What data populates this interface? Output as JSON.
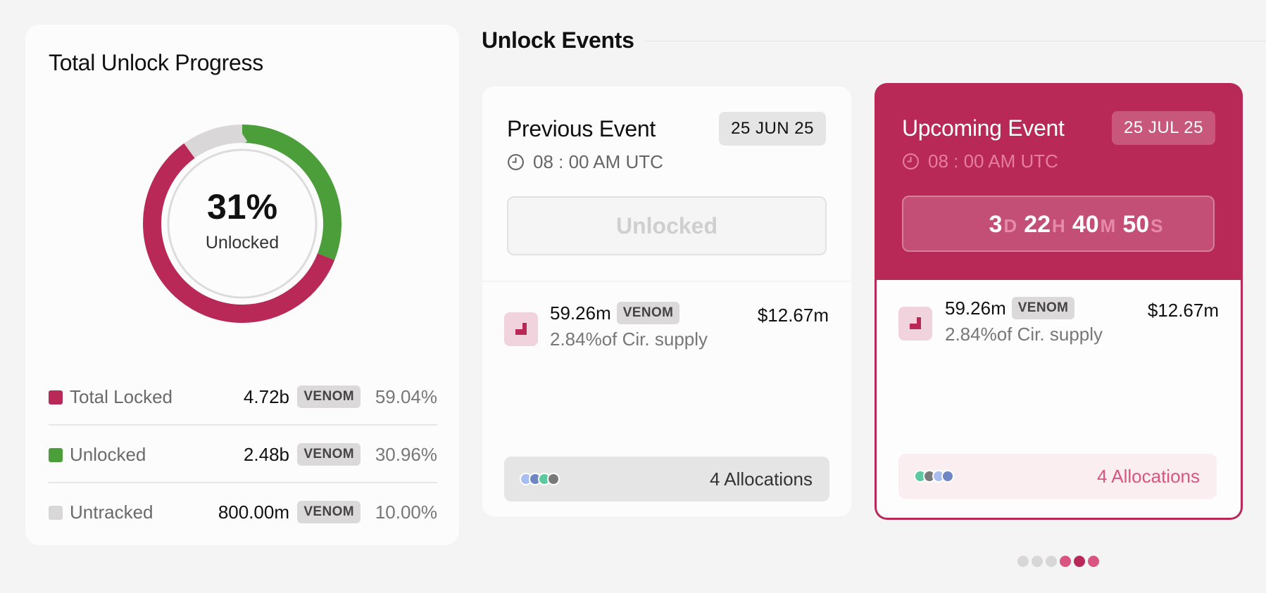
{
  "progress": {
    "title": "Total Unlock Progress",
    "percent": "31%",
    "percent_label": "Unlocked",
    "legend": [
      {
        "name": "Total Locked",
        "amount": "4.72b",
        "token": "VENOM",
        "pct": "59.04%",
        "color": "#b82958",
        "share": 59.04
      },
      {
        "name": "Unlocked",
        "amount": "2.48b",
        "token": "VENOM",
        "pct": "30.96%",
        "color": "#4b9e3a",
        "share": 30.96
      },
      {
        "name": "Untracked",
        "amount": "800.00m",
        "token": "VENOM",
        "pct": "10.00%",
        "color": "#dad7d8",
        "share": 10.0
      }
    ]
  },
  "events": {
    "section_title": "Unlock Events",
    "previous": {
      "title": "Previous Event",
      "date": "25 JUN 25",
      "time": "08 : 00 AM UTC",
      "status": "Unlocked",
      "amount": "59.26m",
      "token": "VENOM",
      "supply": "2.84%of Cir. supply",
      "usd": "$12.67m",
      "allocations": "4 Allocations",
      "dot_colors": [
        "#a8bdf0",
        "#6f86c4",
        "#5cc9a0",
        "#7a7a7a"
      ]
    },
    "upcoming": {
      "title": "Upcoming Event",
      "date": "25 JUL 25",
      "time": "08 : 00 AM UTC",
      "countdown": {
        "d": "3",
        "d_unit": "D",
        "h": "22",
        "h_unit": "H",
        "m": "40",
        "m_unit": "M",
        "s": "50",
        "s_unit": "S"
      },
      "amount": "59.26m",
      "token": "VENOM",
      "supply": "2.84%of Cir. supply",
      "usd": "$12.67m",
      "allocations": "4 Allocations",
      "dot_colors": [
        "#5cc9a0",
        "#7a7a7a",
        "#a8bdf0",
        "#6f86c4"
      ]
    }
  },
  "pager": {
    "total": 6,
    "colors": [
      "#d8d6d7",
      "#d8d6d7",
      "#d8d6d7",
      "#d9557f",
      "#b82958",
      "#d9557f"
    ]
  },
  "colors": {
    "accent": "#b82958",
    "locked": "#b82958",
    "unlocked": "#4b9e3a",
    "untracked": "#dad7d8"
  }
}
